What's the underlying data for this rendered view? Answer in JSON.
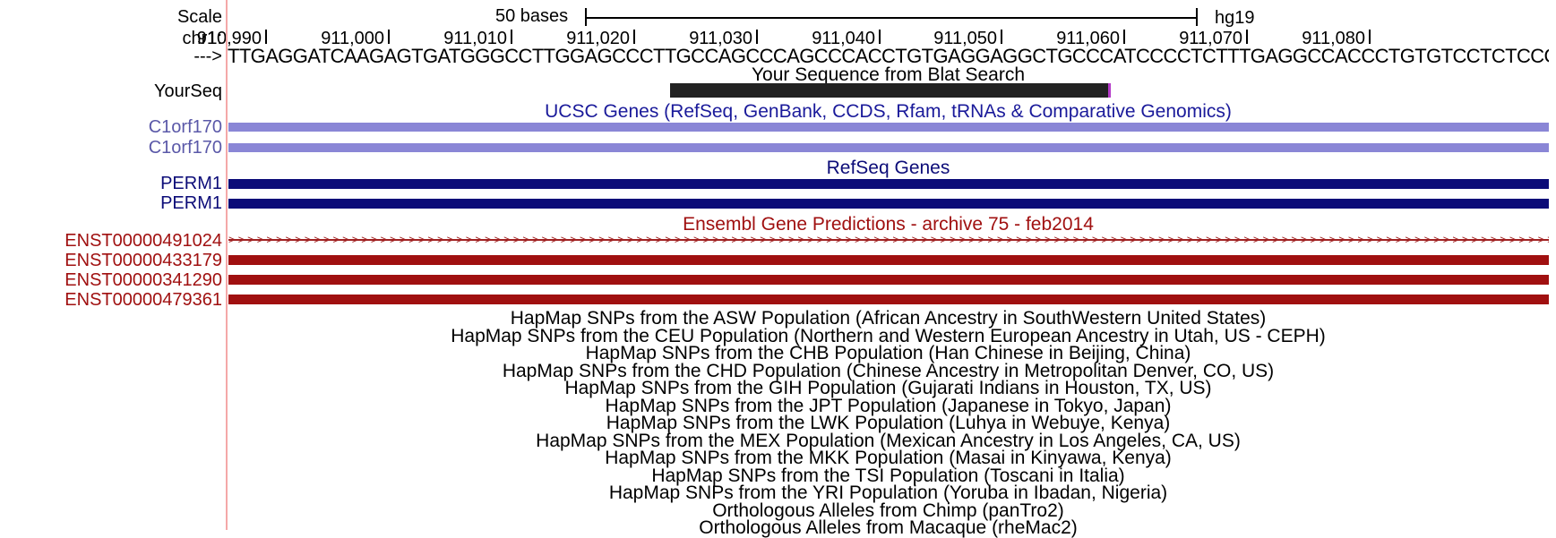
{
  "ruler": {
    "scale_label": "Scale",
    "scale_bases": "50 bases",
    "assembly": "hg19",
    "chrom_label": "chr1:",
    "strand_label": "--->",
    "ticks": [
      "910,990",
      "911,000",
      "911,010",
      "911,020",
      "911,030",
      "911,040",
      "911,050",
      "911,060",
      "911,070",
      "911,080"
    ],
    "sequence": "TTGAGGATCAAGAGTGATGGGCCTTGGAGCCCTTGCCAGCCCAGCCCACCTGTGAGGAGGCTGCCCATCCCCTCTTTGAGGCCACCCTGTGTCCTCTCCCCTGCCTCT"
  },
  "blat": {
    "title": "Your Sequence from Blat Search",
    "row_label": "YourSeq"
  },
  "ucsc_genes": {
    "title": "UCSC Genes (RefSeq, GenBank, CCDS, Rfam, tRNAs & Comparative Genomics)",
    "color": "#8a86d6",
    "label_color": "#5a58a8",
    "rows": [
      "C1orf170",
      "C1orf170"
    ]
  },
  "refseq_genes": {
    "title": "RefSeq Genes",
    "color": "#0c0c78",
    "rows": [
      "PERM1",
      "PERM1"
    ]
  },
  "ensembl": {
    "title": "Ensembl Gene Predictions - archive 75 - feb2014",
    "color": "#a01010",
    "rows": [
      "ENST00000491024",
      "ENST00000433179",
      "ENST00000341290",
      "ENST00000479361"
    ]
  },
  "hapmap_tracks": [
    "HapMap SNPs from the ASW Population (African Ancestry in SouthWestern United States)",
    "HapMap SNPs from the CEU Population (Northern and Western European Ancestry in Utah, US - CEPH)",
    "HapMap SNPs from the CHB Population (Han Chinese in Beijing, China)",
    "HapMap SNPs from the CHD Population (Chinese Ancestry in Metropolitan Denver, CO, US)",
    "HapMap SNPs from the GIH Population (Gujarati Indians in Houston, TX, US)",
    "HapMap SNPs from the JPT Population (Japanese in Tokyo, Japan)",
    "HapMap SNPs from the LWK Population (Luhya in Webuye, Kenya)",
    "HapMap SNPs from the MEX Population (Mexican Ancestry in Los Angeles, CA, US)",
    "HapMap SNPs from the MKK Population (Masai in Kinyawa, Kenya)",
    "HapMap SNPs from the TSI Population (Toscani in Italia)",
    "HapMap SNPs from the YRI Population (Yoruba in Ibadan, Nigeria)",
    "Orthologous Alleles from Chimp (panTro2)",
    "Orthologous Alleles from Macaque (rheMac2)"
  ]
}
